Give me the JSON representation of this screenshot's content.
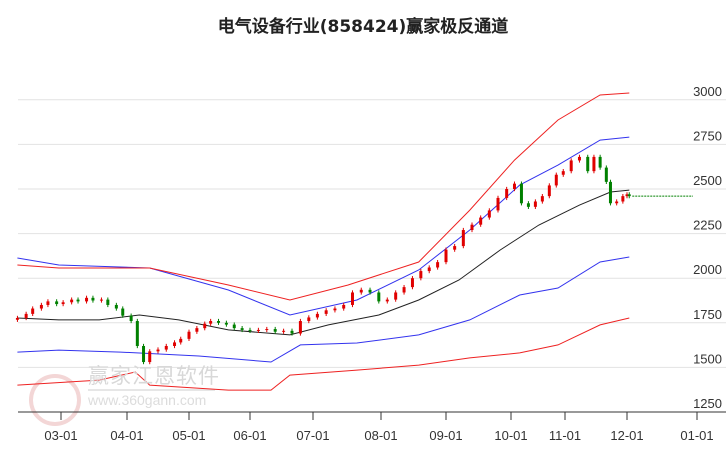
{
  "chart_data": {
    "type": "candlestick",
    "title": "电气设备行业(858424)赢家极反通道",
    "watermark": {
      "name": "赢家江恩软件",
      "url": "www.360gann.com",
      "seal": "江恩赢家"
    },
    "x_ticks": [
      "03-01",
      "04-01",
      "05-01",
      "06-01",
      "07-01",
      "08-01",
      "09-01",
      "10-01",
      "11-01",
      "12-01",
      "01-01"
    ],
    "y_ticks": [
      3000,
      2750,
      2500,
      2250,
      2000,
      1750,
      1500,
      1250
    ],
    "ylim": [
      1250,
      3100
    ],
    "grid": true,
    "colors": {
      "up": "#e00000",
      "down": "#008000",
      "middle": "#222222",
      "inner": "#3333ee",
      "outer": "#ee2222",
      "last": "#008000"
    },
    "closes": [
      [
        "02-09",
        1777
      ],
      [
        "02-13",
        1800
      ],
      [
        "02-16",
        1830
      ],
      [
        "02-20",
        1850
      ],
      [
        "02-23",
        1870
      ],
      [
        "02-27",
        1855
      ],
      [
        "03-02",
        1865
      ],
      [
        "03-06",
        1880
      ],
      [
        "03-09",
        1870
      ],
      [
        "03-13",
        1890
      ],
      [
        "03-16",
        1875
      ],
      [
        "03-20",
        1880
      ],
      [
        "03-23",
        1850
      ],
      [
        "03-27",
        1830
      ],
      [
        "03-30",
        1790
      ],
      [
        "04-03",
        1760
      ],
      [
        "04-06",
        1620
      ],
      [
        "04-09",
        1530
      ],
      [
        "04-12",
        1590
      ],
      [
        "04-16",
        1600
      ],
      [
        "04-20",
        1620
      ],
      [
        "04-24",
        1640
      ],
      [
        "04-27",
        1660
      ],
      [
        "05-01",
        1700
      ],
      [
        "05-05",
        1720
      ],
      [
        "05-09",
        1745
      ],
      [
        "05-12",
        1760
      ],
      [
        "05-16",
        1750
      ],
      [
        "05-20",
        1740
      ],
      [
        "05-24",
        1720
      ],
      [
        "05-28",
        1710
      ],
      [
        "06-01",
        1705
      ],
      [
        "06-05",
        1710
      ],
      [
        "06-09",
        1715
      ],
      [
        "06-13",
        1700
      ],
      [
        "06-17",
        1705
      ],
      [
        "06-21",
        1690
      ],
      [
        "06-25",
        1760
      ],
      [
        "06-29",
        1780
      ],
      [
        "07-03",
        1800
      ],
      [
        "07-07",
        1820
      ],
      [
        "07-11",
        1830
      ],
      [
        "07-15",
        1850
      ],
      [
        "07-19",
        1920
      ],
      [
        "07-23",
        1935
      ],
      [
        "07-27",
        1920
      ],
      [
        "07-31",
        1870
      ],
      [
        "08-04",
        1880
      ],
      [
        "08-08",
        1920
      ],
      [
        "08-12",
        1950
      ],
      [
        "08-16",
        2000
      ],
      [
        "08-20",
        2040
      ],
      [
        "08-24",
        2060
      ],
      [
        "08-28",
        2090
      ],
      [
        "09-01",
        2160
      ],
      [
        "09-05",
        2180
      ],
      [
        "09-09",
        2270
      ],
      [
        "09-13",
        2300
      ],
      [
        "09-17",
        2340
      ],
      [
        "09-21",
        2380
      ],
      [
        "09-25",
        2450
      ],
      [
        "09-29",
        2500
      ],
      [
        "10-03",
        2530
      ],
      [
        "10-07",
        2420
      ],
      [
        "10-11",
        2400
      ],
      [
        "10-15",
        2430
      ],
      [
        "10-19",
        2460
      ],
      [
        "10-23",
        2520
      ],
      [
        "10-27",
        2580
      ],
      [
        "10-31",
        2600
      ],
      [
        "11-04",
        2660
      ],
      [
        "11-08",
        2680
      ],
      [
        "11-12",
        2600
      ],
      [
        "11-15",
        2680
      ],
      [
        "11-18",
        2620
      ],
      [
        "11-21",
        2540
      ],
      [
        "11-23",
        2420
      ],
      [
        "11-26",
        2430
      ],
      [
        "11-29",
        2460
      ],
      [
        "12-01",
        2470
      ],
      [
        "12-02",
        2460
      ]
    ],
    "series": [
      {
        "name": "middle",
        "color": "#222222",
        "points": [
          [
            "02-09",
            1777
          ],
          [
            "02-28",
            1766
          ],
          [
            "03-19",
            1766
          ],
          [
            "04-07",
            1794
          ],
          [
            "04-26",
            1766
          ],
          [
            "05-21",
            1710
          ],
          [
            "06-20",
            1682
          ],
          [
            "07-08",
            1738
          ],
          [
            "07-31",
            1794
          ],
          [
            "08-19",
            1878
          ],
          [
            "09-07",
            1990
          ],
          [
            "09-26",
            2158
          ],
          [
            "10-17",
            2298
          ],
          [
            "11-08",
            2410
          ],
          [
            "11-23",
            2483
          ],
          [
            "12-02",
            2494
          ]
        ]
      },
      {
        "name": "inner-upper",
        "color": "#3333ee",
        "points": [
          [
            "02-09",
            2113
          ],
          [
            "02-28",
            2074
          ],
          [
            "04-12",
            2057
          ],
          [
            "05-21",
            1934
          ],
          [
            "06-20",
            1794
          ],
          [
            "07-21",
            1878
          ],
          [
            "08-19",
            2046
          ],
          [
            "09-12",
            2270
          ],
          [
            "10-06",
            2522
          ],
          [
            "10-28",
            2634
          ],
          [
            "11-18",
            2774
          ],
          [
            "12-02",
            2791
          ]
        ]
      },
      {
        "name": "inner-lower",
        "color": "#3333ee",
        "points": [
          [
            "02-09",
            1586
          ],
          [
            "02-28",
            1597
          ],
          [
            "03-29",
            1586
          ],
          [
            "05-06",
            1564
          ],
          [
            "06-11",
            1530
          ],
          [
            "06-25",
            1626
          ],
          [
            "07-21",
            1637
          ],
          [
            "08-19",
            1682
          ],
          [
            "09-12",
            1766
          ],
          [
            "10-06",
            1906
          ],
          [
            "10-28",
            1945
          ],
          [
            "11-18",
            2091
          ],
          [
            "12-02",
            2119
          ]
        ]
      },
      {
        "name": "outer-upper",
        "color": "#ee2222",
        "points": [
          [
            "02-09",
            2074
          ],
          [
            "02-28",
            2057
          ],
          [
            "04-12",
            2057
          ],
          [
            "05-21",
            1962
          ],
          [
            "06-20",
            1878
          ],
          [
            "07-17",
            1962
          ],
          [
            "08-19",
            2091
          ],
          [
            "09-12",
            2382
          ],
          [
            "10-03",
            2662
          ],
          [
            "10-28",
            2887
          ],
          [
            "11-18",
            3027
          ],
          [
            "12-02",
            3038
          ]
        ]
      },
      {
        "name": "outer-lower",
        "color": "#ee2222",
        "points": [
          [
            "02-09",
            1401
          ],
          [
            "03-19",
            1429
          ],
          [
            "04-05",
            1474
          ],
          [
            "04-12",
            1401
          ],
          [
            "05-21",
            1373
          ],
          [
            "06-11",
            1373
          ],
          [
            "06-20",
            1457
          ],
          [
            "07-21",
            1485
          ],
          [
            "08-19",
            1513
          ],
          [
            "09-12",
            1553
          ],
          [
            "10-06",
            1581
          ],
          [
            "10-28",
            1626
          ],
          [
            "11-18",
            1738
          ],
          [
            "12-02",
            1777
          ]
        ]
      }
    ]
  }
}
